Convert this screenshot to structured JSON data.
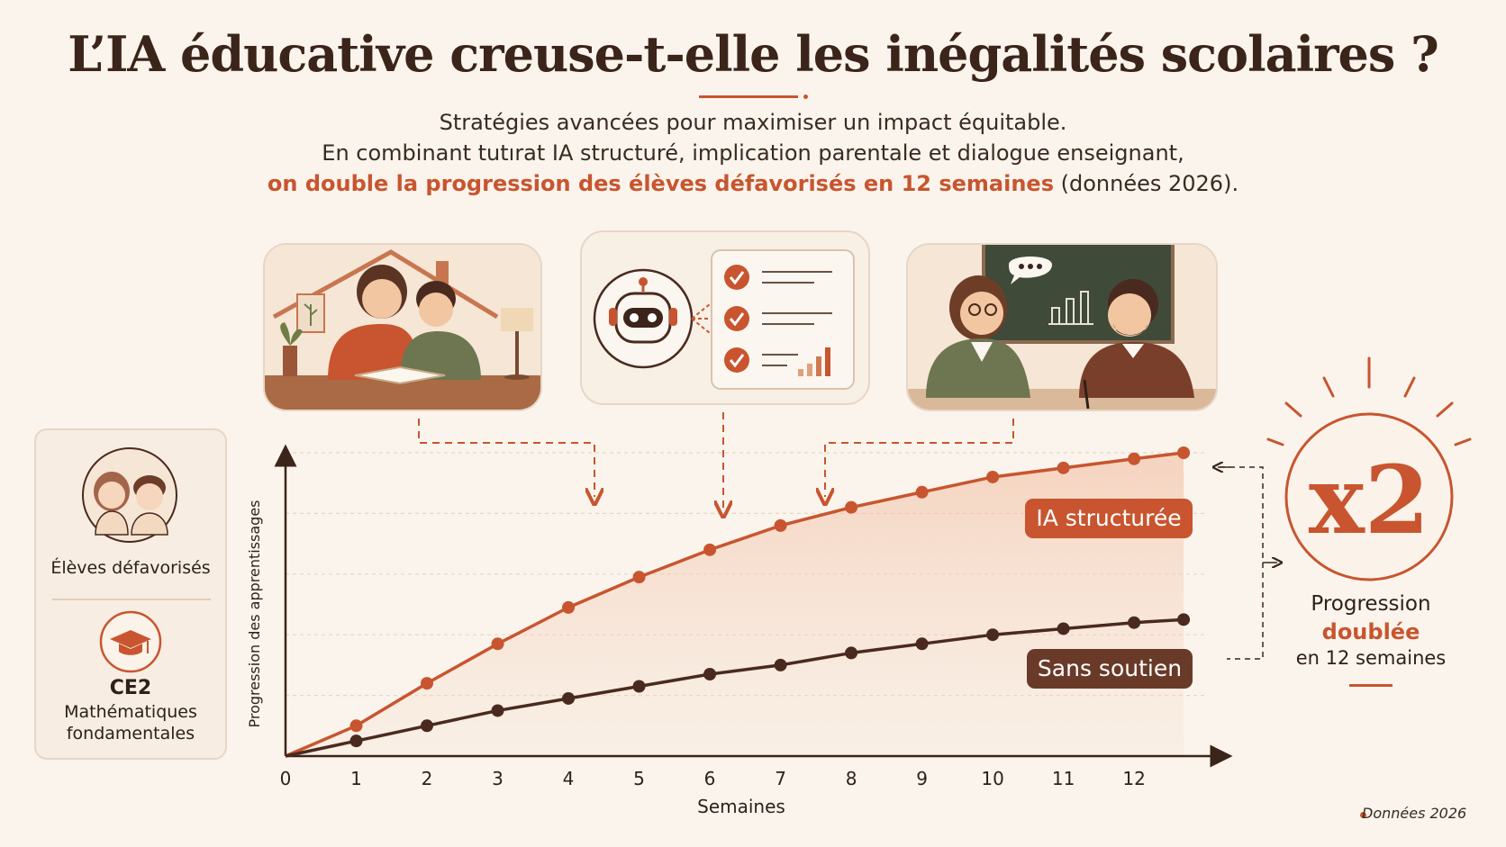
{
  "title": "L’IA éducative creuse-t-elle les inégalités scolaires ?",
  "subtitle_line1": "Stratégies avancées pour maximiser un impact équitable.",
  "subtitle_line2": "En combinant tutırat IA structuré, implication parentale et dialogue enseignant,",
  "subtitle_line3_highlight": "on double la progression des élèves défavorisés en 12 semaines",
  "subtitle_line3_tail": " (données 2026).",
  "side_panel": {
    "group_label": "Élèves défavorisés",
    "level": "CE2",
    "subject_line1": "Mathématiques",
    "subject_line2": "fondamentales"
  },
  "x2_badge": {
    "value": "x2",
    "line1": "Progression",
    "line2": "doublée",
    "line3": "en 12 semaines"
  },
  "footnote": "Données 2026",
  "colors": {
    "accent": "#c8552f",
    "dark": "#5a3526",
    "background": "#faf4ec"
  },
  "icons": [
    "house-parent-child-illustration",
    "robot-checklist-illustration",
    "teacher-parent-meeting-illustration",
    "children-avatar-icon",
    "graduation-cap-icon"
  ],
  "chart_data": {
    "type": "line",
    "x": [
      0,
      1,
      2,
      3,
      4,
      5,
      6,
      7,
      8,
      9,
      10,
      11,
      12,
      12.7
    ],
    "xticks": [
      "0",
      "1",
      "2",
      "3",
      "4",
      "5",
      "6",
      "7",
      "8",
      "9",
      "10",
      "11",
      "12"
    ],
    "xlabel": "Semaines",
    "ylabel": "Progression des apprentissages",
    "ylim": [
      0,
      100
    ],
    "xlim": [
      0,
      13.2
    ],
    "grid": "horizontal dashed",
    "series": [
      {
        "name": "IA structurée",
        "color": "#c8552f",
        "values": [
          0,
          10,
          24,
          37,
          49,
          59,
          68,
          76,
          82,
          87,
          92,
          95,
          98,
          100
        ]
      },
      {
        "name": "Sans soutien",
        "color": "#4a2a1f",
        "values": [
          0,
          5,
          10,
          15,
          19,
          23,
          27,
          30,
          34,
          37,
          40,
          42,
          44,
          45
        ]
      }
    ]
  }
}
